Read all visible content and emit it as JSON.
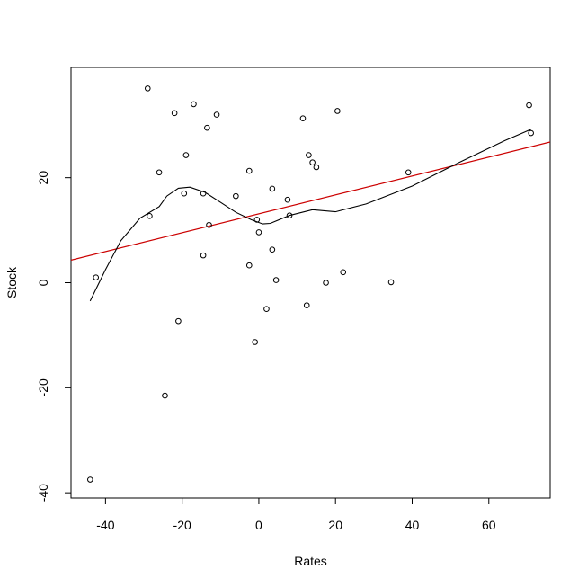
{
  "chart_data": {
    "type": "scatter",
    "title": "",
    "xlabel": "Rates",
    "ylabel": "Stock",
    "xlim": [
      -49,
      76
    ],
    "ylim": [
      -41,
      41
    ],
    "x_ticks": [
      -40,
      -20,
      0,
      20,
      40,
      60
    ],
    "y_ticks": [
      -40,
      -20,
      0,
      20
    ],
    "x_tick_labels": [
      "-40",
      "-20",
      "0",
      "20",
      "40",
      "60"
    ],
    "y_tick_labels": [
      "-40",
      "-20",
      "0",
      "20"
    ],
    "grid": false,
    "legend": "none",
    "colors": {
      "points": "#000000",
      "fit_line": "#cc0000",
      "smooth_line": "#000000"
    },
    "points": [
      {
        "x": -44,
        "y": -37.5
      },
      {
        "x": -42.5,
        "y": 1
      },
      {
        "x": -29,
        "y": 37
      },
      {
        "x": -28.5,
        "y": 12.7
      },
      {
        "x": -26,
        "y": 21
      },
      {
        "x": -24.5,
        "y": -21.5
      },
      {
        "x": -22,
        "y": 32.3
      },
      {
        "x": -21,
        "y": -7.3
      },
      {
        "x": -19.5,
        "y": 17
      },
      {
        "x": -19,
        "y": 24.3
      },
      {
        "x": -17,
        "y": 34
      },
      {
        "x": -14.5,
        "y": 17
      },
      {
        "x": -14.5,
        "y": 5.2
      },
      {
        "x": -13.5,
        "y": 29.5
      },
      {
        "x": -13,
        "y": 11
      },
      {
        "x": -11,
        "y": 32
      },
      {
        "x": -6,
        "y": 16.5
      },
      {
        "x": -2.5,
        "y": 21.3
      },
      {
        "x": -2.5,
        "y": 3.3
      },
      {
        "x": -1,
        "y": -11.3
      },
      {
        "x": -0.5,
        "y": 12
      },
      {
        "x": 0,
        "y": 9.6
      },
      {
        "x": 2,
        "y": -5
      },
      {
        "x": 3.5,
        "y": 17.9
      },
      {
        "x": 3.5,
        "y": 6.3
      },
      {
        "x": 4.5,
        "y": 0.5
      },
      {
        "x": 7.5,
        "y": 15.8
      },
      {
        "x": 8,
        "y": 12.8
      },
      {
        "x": 11.5,
        "y": 31.3
      },
      {
        "x": 12.5,
        "y": -4.3
      },
      {
        "x": 13,
        "y": 24.3
      },
      {
        "x": 14,
        "y": 22.9
      },
      {
        "x": 15,
        "y": 22
      },
      {
        "x": 17.5,
        "y": 0
      },
      {
        "x": 20.5,
        "y": 32.7
      },
      {
        "x": 22,
        "y": 2
      },
      {
        "x": 34.5,
        "y": 0.1
      },
      {
        "x": 39,
        "y": 21
      },
      {
        "x": 70.5,
        "y": 33.8
      },
      {
        "x": 71,
        "y": 28.5
      }
    ],
    "fit_line": [
      {
        "x": -49,
        "y": 4.3
      },
      {
        "x": 76,
        "y": 26.8
      }
    ],
    "smooth_line": [
      {
        "x": -44,
        "y": -3.5
      },
      {
        "x": -40,
        "y": 2.5
      },
      {
        "x": -36,
        "y": 8.0
      },
      {
        "x": -31,
        "y": 12.3
      },
      {
        "x": -26,
        "y": 14.5
      },
      {
        "x": -24,
        "y": 16.5
      },
      {
        "x": -21,
        "y": 18.0
      },
      {
        "x": -18,
        "y": 18.2
      },
      {
        "x": -14,
        "y": 17.2
      },
      {
        "x": -10,
        "y": 15.3
      },
      {
        "x": -6,
        "y": 13.4
      },
      {
        "x": -2,
        "y": 12.0
      },
      {
        "x": 1,
        "y": 11.2
      },
      {
        "x": 3,
        "y": 11.3
      },
      {
        "x": 8,
        "y": 12.8
      },
      {
        "x": 14,
        "y": 13.9
      },
      {
        "x": 20,
        "y": 13.5
      },
      {
        "x": 28,
        "y": 15.0
      },
      {
        "x": 40,
        "y": 18.4
      },
      {
        "x": 52,
        "y": 22.8
      },
      {
        "x": 64,
        "y": 27.0
      },
      {
        "x": 71,
        "y": 29.2
      }
    ]
  }
}
